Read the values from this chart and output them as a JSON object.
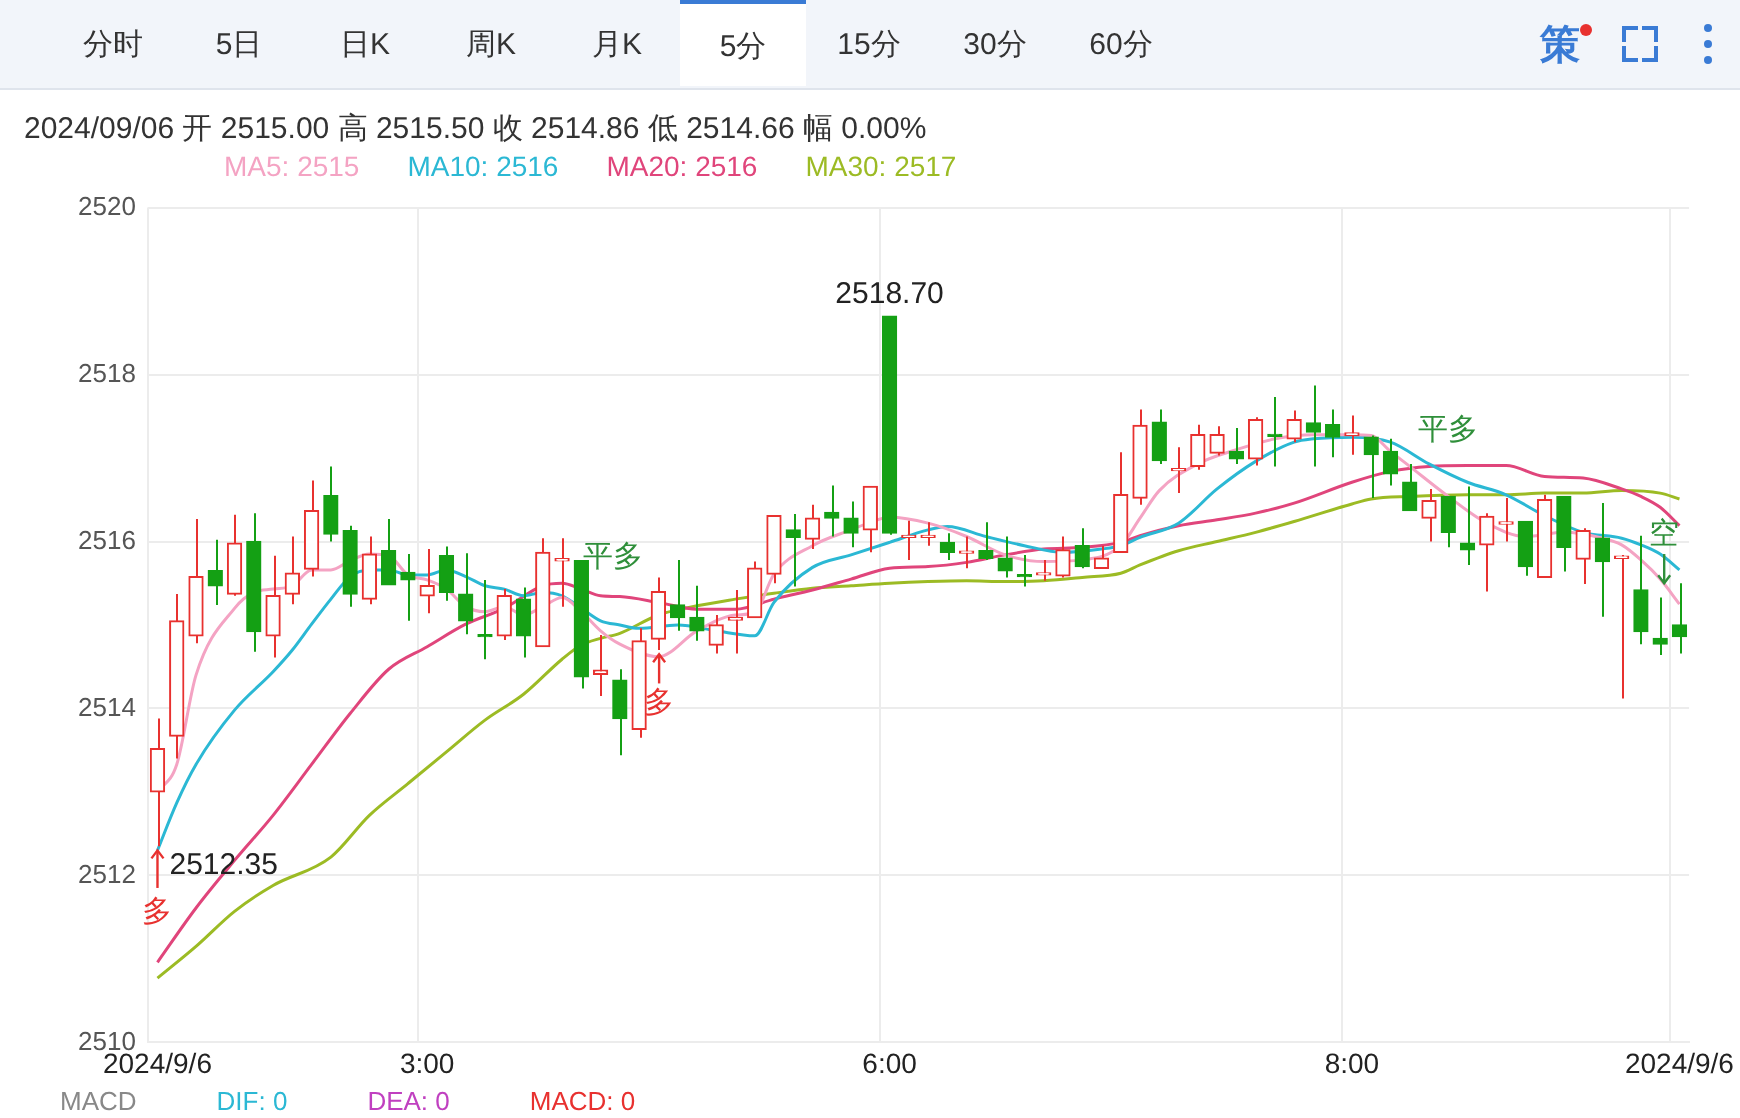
{
  "chart_data": [
    {
      "type": "other",
      "annotations": [
        "分时",
        "5日",
        "日K",
        "周K",
        "月K",
        "5分",
        "15分",
        "30分",
        "60分",
        "策"
      ]
    },
    {
      "type": "candlestick",
      "subtitle": "2024/09/06 开 2515.00 高 2515.50 收 2514.86 低 2514.66 幅 0.00%",
      "categories": [
        "2024/9/6",
        null,
        null,
        null,
        null,
        null,
        null,
        null,
        null,
        null,
        null,
        null,
        null,
        null,
        "3:00",
        null,
        null,
        null,
        null,
        null,
        null,
        null,
        null,
        null,
        null,
        null,
        null,
        null,
        null,
        null,
        null,
        null,
        null,
        null,
        null,
        null,
        null,
        null,
        "6:00",
        null,
        null,
        null,
        null,
        null,
        null,
        null,
        null,
        null,
        null,
        null,
        null,
        null,
        null,
        null,
        null,
        null,
        null,
        null,
        null,
        null,
        null,
        null,
        "8:00",
        null,
        null,
        null,
        null,
        null,
        null,
        null,
        null,
        null,
        null,
        null,
        null,
        null,
        null,
        null,
        null,
        "2024/9/6"
      ],
      "ohlc": [
        [
          2513.0,
          2513.88,
          2512.35,
          2513.52
        ],
        [
          2513.67,
          2515.37,
          2513.4,
          2515.05
        ],
        [
          2514.87,
          2516.27,
          2514.78,
          2515.58
        ],
        [
          2515.65,
          2516.02,
          2515.24,
          2515.47
        ],
        [
          2515.37,
          2516.32,
          2515.35,
          2515.98
        ],
        [
          2516.0,
          2516.34,
          2514.68,
          2514.92
        ],
        [
          2514.87,
          2515.83,
          2514.61,
          2515.35
        ],
        [
          2515.37,
          2516.06,
          2515.25,
          2515.62
        ],
        [
          2515.67,
          2516.73,
          2515.58,
          2516.37
        ],
        [
          2516.55,
          2516.9,
          2516.0,
          2516.09
        ],
        [
          2516.13,
          2516.19,
          2515.22,
          2515.37
        ],
        [
          2515.31,
          2516.06,
          2515.25,
          2515.85
        ],
        [
          2515.89,
          2516.27,
          2515.48,
          2515.48
        ],
        [
          2515.63,
          2515.85,
          2515.05,
          2515.54
        ],
        [
          2515.35,
          2515.91,
          2515.14,
          2515.47
        ],
        [
          2515.83,
          2515.94,
          2515.29,
          2515.39
        ],
        [
          2515.37,
          2515.86,
          2514.89,
          2515.05
        ],
        [
          2514.88,
          2515.54,
          2514.59,
          2514.86
        ],
        [
          2514.87,
          2515.43,
          2514.82,
          2515.35
        ],
        [
          2515.31,
          2515.45,
          2514.61,
          2514.87
        ],
        [
          2514.74,
          2516.04,
          2514.74,
          2515.87
        ],
        [
          2515.77,
          2516.04,
          2515.22,
          2515.79
        ],
        [
          2515.77,
          2515.78,
          2514.24,
          2514.38
        ],
        [
          2514.41,
          2514.88,
          2514.15,
          2514.46
        ],
        [
          2514.34,
          2514.47,
          2513.44,
          2513.88
        ],
        [
          2513.75,
          2514.96,
          2513.65,
          2514.81
        ],
        [
          2514.83,
          2515.57,
          2514.7,
          2515.4
        ],
        [
          2515.24,
          2515.78,
          2514.93,
          2515.09
        ],
        [
          2515.09,
          2515.47,
          2514.81,
          2514.93
        ],
        [
          2514.76,
          2515.12,
          2514.66,
          2515.0
        ],
        [
          2515.06,
          2515.42,
          2514.66,
          2515.09
        ],
        [
          2515.09,
          2515.76,
          2515.09,
          2515.68
        ],
        [
          2515.61,
          2516.31,
          2515.5,
          2516.31
        ],
        [
          2516.14,
          2516.33,
          2515.46,
          2516.05
        ],
        [
          2516.03,
          2516.44,
          2515.91,
          2516.28
        ],
        [
          2516.35,
          2516.67,
          2516.06,
          2516.28
        ],
        [
          2516.28,
          2516.48,
          2515.93,
          2516.1
        ],
        [
          2516.14,
          2516.66,
          2515.87,
          2516.66
        ],
        [
          2518.7,
          2518.7,
          2516.08,
          2516.1
        ],
        [
          2516.05,
          2516.25,
          2515.78,
          2516.07
        ],
        [
          2516.05,
          2516.23,
          2515.95,
          2516.07
        ],
        [
          2515.99,
          2516.1,
          2515.78,
          2515.87
        ],
        [
          2515.86,
          2516.06,
          2515.68,
          2515.88
        ],
        [
          2515.89,
          2516.23,
          2515.78,
          2515.8
        ],
        [
          2515.8,
          2516.06,
          2515.57,
          2515.65
        ],
        [
          2515.6,
          2515.84,
          2515.46,
          2515.58
        ],
        [
          2515.6,
          2515.78,
          2515.53,
          2515.62
        ],
        [
          2515.59,
          2516.06,
          2515.57,
          2515.9
        ],
        [
          2515.95,
          2516.16,
          2515.68,
          2515.7
        ],
        [
          2515.68,
          2515.95,
          2515.68,
          2515.8
        ],
        [
          2515.87,
          2517.07,
          2515.87,
          2516.56
        ],
        [
          2516.52,
          2517.58,
          2516.44,
          2517.39
        ],
        [
          2517.43,
          2517.58,
          2516.93,
          2516.97
        ],
        [
          2516.85,
          2517.13,
          2516.58,
          2516.87
        ],
        [
          2516.9,
          2517.4,
          2516.86,
          2517.28
        ],
        [
          2517.06,
          2517.38,
          2517.03,
          2517.28
        ],
        [
          2517.08,
          2517.36,
          2516.93,
          2516.99
        ],
        [
          2516.99,
          2517.49,
          2516.91,
          2517.46
        ],
        [
          2517.28,
          2517.73,
          2516.9,
          2517.26
        ],
        [
          2517.23,
          2517.57,
          2517.19,
          2517.46
        ],
        [
          2517.42,
          2517.87,
          2516.9,
          2517.31
        ],
        [
          2517.4,
          2517.58,
          2517.01,
          2517.25
        ],
        [
          2517.27,
          2517.51,
          2517.04,
          2517.3
        ],
        [
          2517.25,
          2517.27,
          2516.52,
          2517.04
        ],
        [
          2517.08,
          2517.23,
          2516.67,
          2516.81
        ],
        [
          2516.71,
          2516.93,
          2516.37,
          2516.37
        ],
        [
          2516.28,
          2516.63,
          2516.0,
          2516.49
        ],
        [
          2516.54,
          2516.54,
          2515.93,
          2516.11
        ],
        [
          2515.98,
          2516.66,
          2515.72,
          2515.9
        ],
        [
          2515.96,
          2516.34,
          2515.4,
          2516.3
        ],
        [
          2516.21,
          2516.52,
          2516.0,
          2516.23
        ],
        [
          2516.24,
          2516.24,
          2515.59,
          2515.7
        ],
        [
          2515.57,
          2516.56,
          2515.57,
          2516.5
        ],
        [
          2516.54,
          2516.54,
          2515.64,
          2515.93
        ],
        [
          2515.79,
          2516.16,
          2515.49,
          2516.13
        ],
        [
          2516.04,
          2516.46,
          2515.1,
          2515.76
        ],
        [
          2515.8,
          2515.84,
          2514.12,
          2515.82
        ],
        [
          2515.42,
          2516.07,
          2514.77,
          2514.92
        ],
        [
          2514.84,
          2515.33,
          2514.64,
          2514.77
        ],
        [
          2515.0,
          2515.5,
          2514.66,
          2514.86
        ]
      ],
      "series": [
        {
          "type": "line",
          "name": "MA5: 2515",
          "color": "#f4a3c3",
          "values": [
            2513.0,
            2513.33,
            2514.4,
            null,
            2515.2,
            2515.39,
            2515.43,
            2515.47,
            2515.66,
            2515.66,
            2515.77,
            2515.85,
            2515.83,
            2515.6,
            2515.54,
            2515.43,
            2515.22,
            2515.16,
            2515.22,
            2515.12,
            2515.22,
            2515.33,
            2515.16,
            2514.93,
            2514.77,
            null,
            2514.62,
            null,
            2514.93,
            null,
            2515.12,
            2515.15,
            2515.61,
            null,
            2515.95,
            null,
            2516.14,
            2516.23,
            2516.29,
            null,
            2516.22,
            null,
            2516.06,
            null,
            2515.84,
            null,
            2515.76,
            null,
            2515.78,
            null,
            2515.95,
            2516.28,
            2516.61,
            null,
            2516.93,
            null,
            2517.1,
            null,
            2517.23,
            null,
            2517.28,
            null,
            2517.28,
            2517.27,
            2517.08,
            2516.9,
            null,
            2516.54,
            null,
            2516.22,
            null,
            2516.06,
            null,
            2516.11,
            null,
            2516.04,
            2515.96,
            2515.78,
            2515.55,
            2515.25
          ]
        },
        {
          "type": "line",
          "name": "MA10: 2516",
          "color": "#2bb8d4",
          "values": [
            2512.3,
            2512.87,
            2513.33,
            null,
            2513.98,
            null,
            2514.44,
            2514.7,
            2515.01,
            2515.31,
            2515.58,
            2515.66,
            2515.66,
            2515.6,
            2515.6,
            2515.66,
            2515.58,
            2515.47,
            2515.43,
            2515.35,
            2515.39,
            2515.35,
            2515.2,
            2515.05,
            2515.0,
            2514.96,
            null,
            2515.0,
            null,
            2514.93,
            null,
            2514.87,
            2515.27,
            null,
            2515.69,
            null,
            2515.84,
            null,
            2515.99,
            null,
            2516.14,
            2516.18,
            null,
            2516.06,
            null,
            2515.95,
            null,
            2515.87,
            null,
            2515.91,
            2515.95,
            2516.05,
            null,
            2516.22,
            null,
            2516.63,
            null,
            2516.96,
            null,
            2517.19,
            2517.23,
            null,
            2517.25,
            null,
            2517.19,
            null,
            2516.93,
            null,
            2516.71,
            null,
            2516.56,
            null,
            2516.31,
            null,
            2516.11,
            null,
            2516.04,
            2515.96,
            2515.85,
            2515.66
          ]
        },
        {
          "type": "line",
          "name": "MA20: 2516",
          "color": "#e0457b",
          "values": [
            2510.96,
            null,
            2511.61,
            null,
            2512.18,
            null,
            2512.72,
            null,
            2513.33,
            null,
            2513.94,
            null,
            2514.47,
            null,
            2514.74,
            null,
            2515.01,
            null,
            2515.2,
            null,
            2515.47,
            2515.5,
            2515.43,
            2515.35,
            2515.34,
            null,
            2515.27,
            null,
            2515.19,
            null,
            2515.19,
            null,
            2515.31,
            null,
            2515.42,
            null,
            2515.55,
            null,
            2515.68,
            null,
            2515.7,
            null,
            2515.75,
            null,
            2515.84,
            null,
            2515.91,
            null,
            2515.93,
            null,
            2515.99,
            2516.07,
            null,
            2516.19,
            null,
            2516.26,
            null,
            2516.34,
            null,
            2516.46,
            null,
            null,
            2516.71,
            null,
            2516.84,
            null,
            2516.9,
            null,
            2516.91,
            null,
            2516.91,
            null,
            2516.78,
            null,
            2516.76,
            null,
            2516.63,
            2516.54,
            2516.41,
            2516.19
          ]
        },
        {
          "type": "line",
          "name": "MA30: 2517",
          "color": "#9cbb24",
          "values": [
            2510.77,
            null,
            2511.15,
            null,
            2511.57,
            null,
            2511.88,
            null,
            null,
            2512.22,
            null,
            2512.72,
            null,
            2513.1,
            null,
            2513.48,
            null,
            2513.86,
            null,
            2514.17,
            null,
            2514.59,
            2514.76,
            2514.84,
            2514.9,
            null,
            2515.12,
            null,
            2515.23,
            null,
            2515.31,
            null,
            2515.38,
            null,
            2515.44,
            null,
            2515.47,
            null,
            2515.5,
            null,
            2515.52,
            null,
            2515.53,
            null,
            2515.52,
            null,
            2515.53,
            null,
            2515.57,
            null,
            2515.62,
            2515.72,
            null,
            2515.89,
            null,
            2516.0,
            null,
            2516.11,
            null,
            2516.24,
            null,
            null,
            2516.45,
            2516.51,
            null,
            2516.54,
            null,
            null,
            2516.56,
            null,
            2516.56,
            null,
            2516.58,
            null,
            2516.58,
            null,
            2516.61,
            null,
            2516.58,
            2516.51
          ]
        }
      ],
      "ylim": [
        2510,
        2520
      ],
      "yticks": [
        2510,
        2512,
        2514,
        2516,
        2518,
        2520
      ],
      "grid": true,
      "legend": "top left",
      "annotations": [
        {
          "text": "2518.70",
          "x": "6:00",
          "y": 2518.7
        },
        {
          "text": "2512.35",
          "x": "2024/9/6",
          "y": 2512.35
        },
        "多",
        "多",
        "平多",
        "平多",
        "空",
        "MACD",
        "DIF: 0",
        "DEA: 0",
        "MACD: 0"
      ]
    }
  ]
}
